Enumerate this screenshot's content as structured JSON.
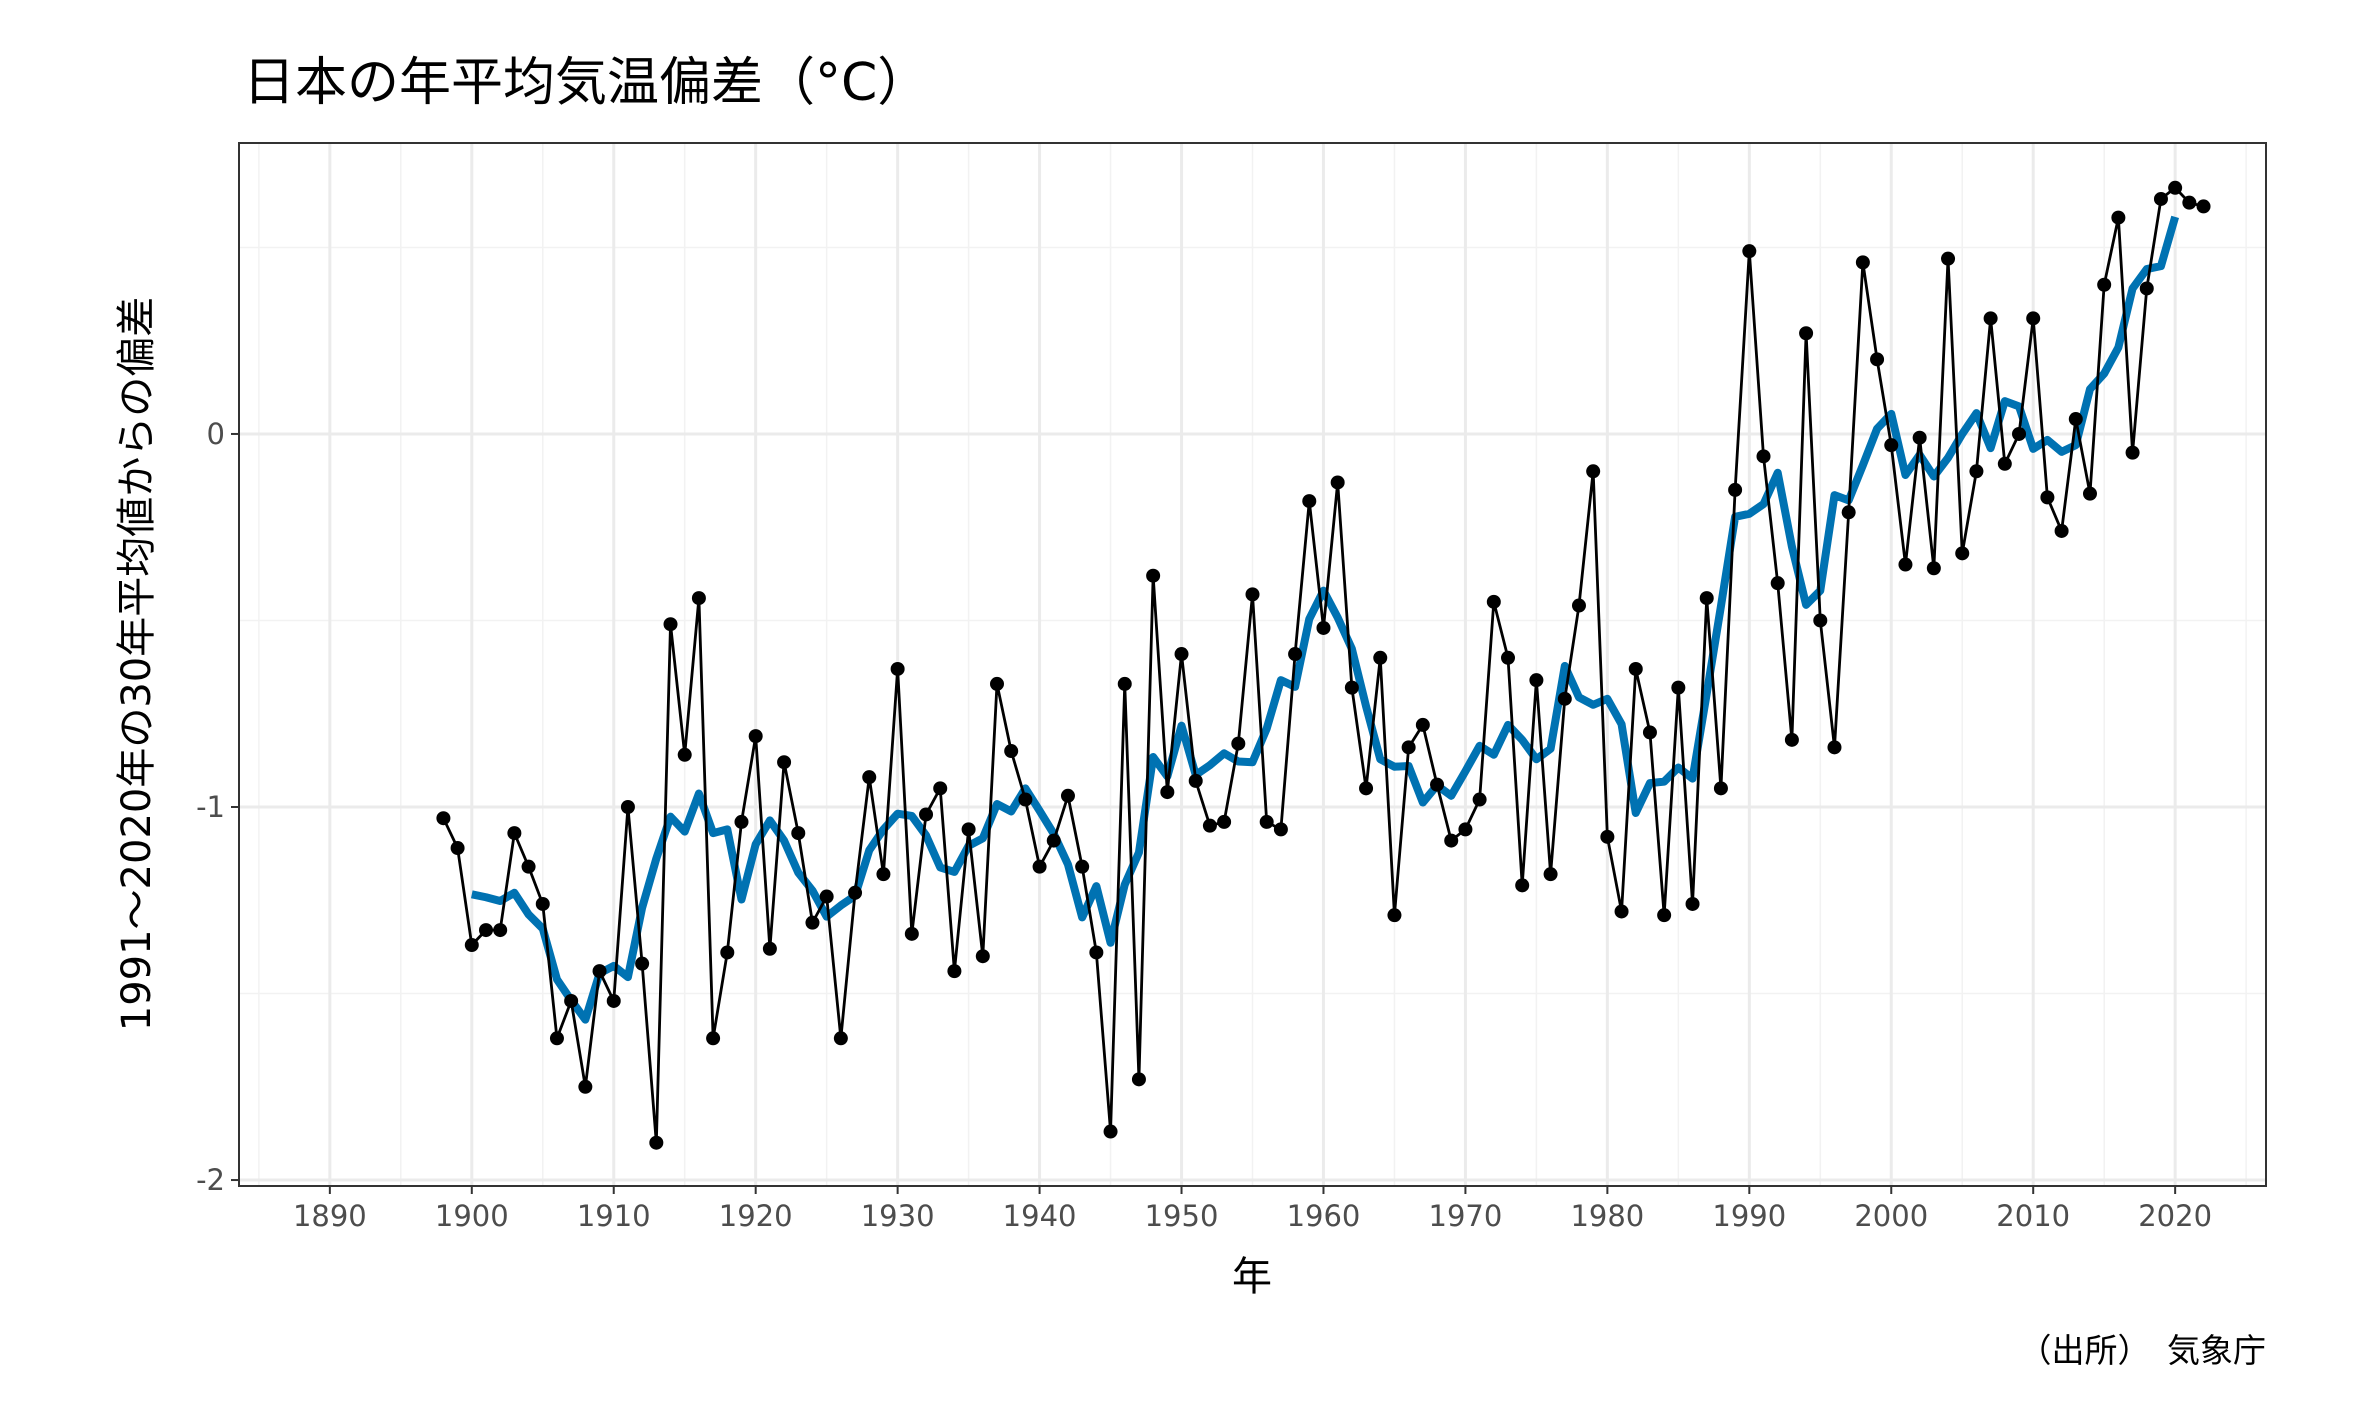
{
  "chart_data": {
    "type": "line",
    "title": "日本の年平均気温偏差（°C）",
    "xlabel": "年",
    "ylabel": "1991～2020年の30年平均値からの偏差",
    "caption": "（出所）　気象庁",
    "xlim": [
      1883.6,
      2026.4
    ],
    "ylim": [
      -2.016,
      0.78
    ],
    "x_ticks": [
      1890,
      1900,
      1910,
      1920,
      1930,
      1940,
      1950,
      1960,
      1970,
      1980,
      1990,
      2000,
      2010,
      2020
    ],
    "x_tick_labels": [
      "1890",
      "1900",
      "1910",
      "1920",
      "1930",
      "1940",
      "1950",
      "1960",
      "1970",
      "1980",
      "1990",
      "2000",
      "2010",
      "2020"
    ],
    "y_ticks": [
      0,
      -1,
      -2
    ],
    "y_tick_labels": [
      "0",
      "-1",
      "-2"
    ],
    "grid": true,
    "colors": {
      "annual": "#000000",
      "moving_average": "#0072B2"
    },
    "series": [
      {
        "name": "annual",
        "x_start": 1898,
        "values": [
          -1.03,
          -1.11,
          -1.37,
          -1.33,
          -1.33,
          -1.07,
          -1.16,
          -1.26,
          -1.62,
          -1.52,
          -1.75,
          -1.44,
          -1.52,
          -1.0,
          -1.42,
          -1.9,
          -0.51,
          -0.86,
          -0.44,
          -1.62,
          -1.39,
          -1.04,
          -0.81,
          -1.38,
          -0.88,
          -1.07,
          -1.31,
          -1.24,
          -1.62,
          -1.23,
          -0.92,
          -1.18,
          -0.63,
          -1.34,
          -1.02,
          -0.95,
          -1.44,
          -1.06,
          -1.4,
          -0.67,
          -0.85,
          -0.98,
          -1.16,
          -1.09,
          -0.97,
          -1.16,
          -1.39,
          -1.87,
          -0.67,
          -1.73,
          -0.38,
          -0.96,
          -0.59,
          -0.93,
          -1.05,
          -1.04,
          -0.83,
          -0.43,
          -1.04,
          -1.06,
          -0.59,
          -0.18,
          -0.52,
          -0.13,
          -0.68,
          -0.95,
          -0.6,
          -1.29,
          -0.84,
          -0.78,
          -0.94,
          -1.09,
          -1.06,
          -0.98,
          -0.45,
          -0.6,
          -1.21,
          -0.66,
          -1.18,
          -0.71,
          -0.46,
          -0.1,
          -1.08,
          -1.28,
          -0.63,
          -0.8,
          -1.29,
          -0.68,
          -1.26,
          -0.44,
          -0.95,
          -0.15,
          0.49,
          -0.06,
          -0.4,
          -0.82,
          0.27,
          -0.5,
          -0.84,
          -0.21,
          0.46,
          0.2,
          -0.03,
          -0.35,
          -0.01,
          -0.36,
          0.47,
          -0.32,
          -0.1,
          0.31,
          -0.08,
          0.0,
          0.31,
          -0.17,
          -0.26,
          0.04,
          -0.16,
          0.4,
          0.58,
          -0.05,
          0.39,
          0.63,
          0.66,
          0.62,
          0.61
        ]
      },
      {
        "name": "moving_average",
        "window": 5
      }
    ]
  }
}
